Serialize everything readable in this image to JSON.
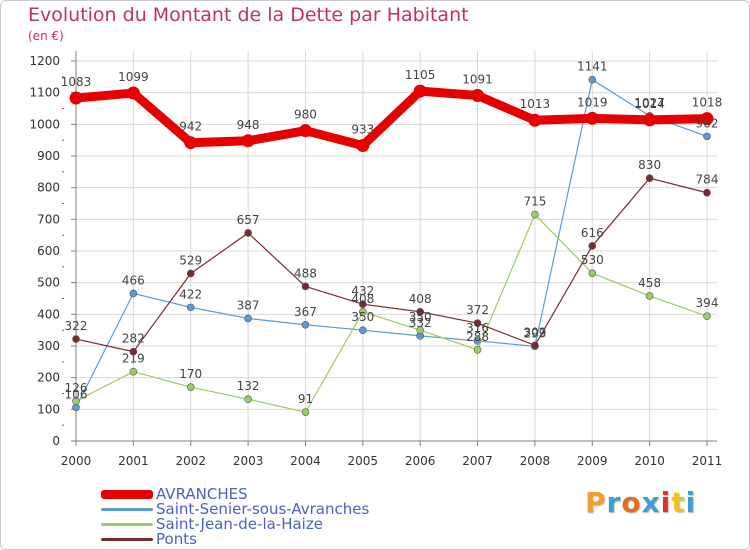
{
  "title": "Evolution du Montant de la Dette par Habitant",
  "unit_label": "(en €)",
  "colors": {
    "title": "#c0306b",
    "legend_text": "#4a61c6",
    "grid": "#d8d8d8",
    "axis": "#808080"
  },
  "legend": [
    {
      "label": "AVRANCHES",
      "color": "#e60000"
    },
    {
      "label": "Saint-Senier-sous-Avranches",
      "color": "#5b9bd5"
    },
    {
      "label": "Saint-Jean-de-la-Haize",
      "color": "#9acd62"
    },
    {
      "label": "Ponts",
      "color": "#7a2a2e"
    }
  ],
  "logo": {
    "text": "Proxiti",
    "letter_colors": [
      "#f0a030",
      "#3aa0d8",
      "#e07020",
      "#3aa0d8",
      "#e03030",
      "#f0c020",
      "#3aa0d8"
    ]
  },
  "chart_data": {
    "type": "line",
    "title": "Evolution du Montant de la Dette par Habitant",
    "ylabel": "(en €)",
    "xlabel": "",
    "x": [
      "2000",
      "2001",
      "2002",
      "2003",
      "2004",
      "2005",
      "2006",
      "2007",
      "2008",
      "2009",
      "2010",
      "2011"
    ],
    "ylim": [
      0,
      1200
    ],
    "yticks": [
      0,
      100,
      200,
      300,
      400,
      500,
      600,
      700,
      800,
      900,
      1000,
      1100,
      1200
    ],
    "grid": true,
    "legend_position": "bottom-left",
    "series": [
      {
        "name": "AVRANCHES",
        "color": "#e60000",
        "values": [
          1083,
          1099,
          942,
          948,
          980,
          933,
          1105,
          1091,
          1013,
          1019,
          1014,
          1018
        ]
      },
      {
        "name": "Saint-Senier-sous-Avranches",
        "color": "#5b9bd5",
        "values": [
          106,
          466,
          422,
          387,
          367,
          350,
          332,
          316,
          299,
          1141,
          1027,
          962
        ]
      },
      {
        "name": "Saint-Jean-de-la-Haize",
        "color": "#9acd62",
        "values": [
          126,
          219,
          170,
          132,
          91,
          408,
          350,
          288,
          715,
          530,
          458,
          394
        ]
      },
      {
        "name": "Ponts",
        "color": "#7a2a2e",
        "values": [
          322,
          282,
          529,
          657,
          488,
          432,
          408,
          372,
          302,
          616,
          830,
          784
        ]
      }
    ]
  }
}
